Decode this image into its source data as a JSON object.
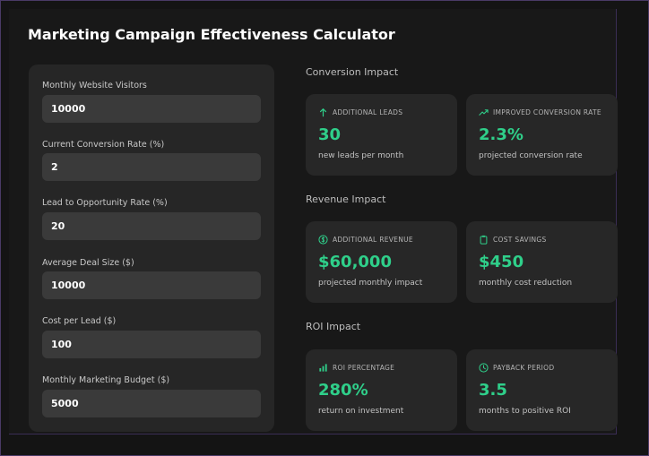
{
  "title": "Marketing Campaign Effectiveness Calculator",
  "accent_color": "#2fcf8a",
  "inputs": [
    {
      "label": "Monthly Website Visitors",
      "value": "10000"
    },
    {
      "label": "Current Conversion Rate (%)",
      "value": "2"
    },
    {
      "label": "Lead to Opportunity Rate (%)",
      "value": "20"
    },
    {
      "label": "Average Deal Size ($)",
      "value": "10000"
    },
    {
      "label": "Cost per Lead ($)",
      "value": "100"
    },
    {
      "label": "Monthly Marketing Budget ($)",
      "value": "5000"
    }
  ],
  "sections": {
    "conversion": {
      "title": "Conversion Impact",
      "cards": [
        {
          "icon": "arrow-up-icon",
          "label": "ADDITIONAL LEADS",
          "value": "30",
          "sub": "new leads per month"
        },
        {
          "icon": "trending-up-icon",
          "label": "IMPROVED CONVERSION RATE",
          "value": "2.3%",
          "sub": "projected conversion rate"
        }
      ]
    },
    "revenue": {
      "title": "Revenue Impact",
      "cards": [
        {
          "icon": "dollar-circle-icon",
          "label": "ADDITIONAL REVENUE",
          "value": "$60,000",
          "sub": "projected monthly impact"
        },
        {
          "icon": "clipboard-icon",
          "label": "COST SAVINGS",
          "value": "$450",
          "sub": "monthly cost reduction"
        }
      ]
    },
    "roi": {
      "title": "ROI Impact",
      "cards": [
        {
          "icon": "bar-chart-icon",
          "label": "ROI PERCENTAGE",
          "value": "280%",
          "sub": "return on investment"
        },
        {
          "icon": "clock-icon",
          "label": "PAYBACK PERIOD",
          "value": "3.5",
          "sub": "months to positive ROI"
        }
      ]
    }
  }
}
